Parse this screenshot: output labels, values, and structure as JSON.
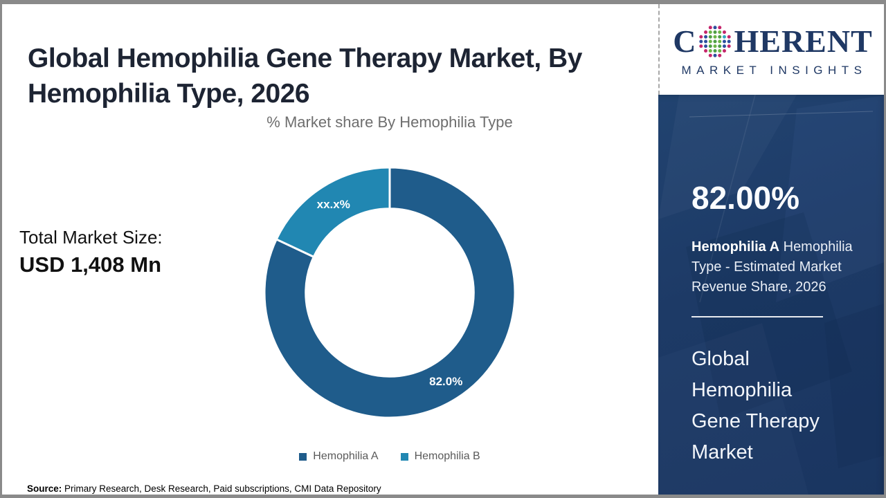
{
  "header": {
    "title": "Global Hemophilia Gene Therapy Market, By Hemophilia Type, 2026"
  },
  "left_panel": {
    "total_label": "Total Market Size:",
    "total_value": "USD 1,408 Mn"
  },
  "chart_data": {
    "type": "donut",
    "title": "% Market share By Hemophilia Type",
    "unit": "%",
    "start_angle_deg": 0,
    "inner_radius_ratio": 0.67,
    "legend_position": "bottom",
    "series": [
      {
        "label": "Hemophilia A",
        "value": 82.0,
        "data_label": "82.0%",
        "color": "#1F5C8B"
      },
      {
        "label": "Hemophilia B",
        "value": 18.0,
        "data_label": "xx.x%",
        "color": "#2187B2"
      }
    ]
  },
  "sidebar": {
    "stat_value": "82.00%",
    "stat_desc_bold": "Hemophilia A",
    "stat_desc_rest": " Hemophilia Type - Estimated Market Revenue Share, 2026",
    "headline": "Global Hemophilia Gene Therapy Market",
    "background_color": "#1D3A66"
  },
  "logo": {
    "word_start": "C",
    "word_end": "HERENT",
    "subtitle": "MARKET INSIGHTS",
    "brand_color": "#1F3864",
    "globe_dot_palette": [
      "#4E9E45",
      "#6CB546",
      "#2E4E9E",
      "#C5256B",
      "#35A8C0"
    ]
  },
  "source": {
    "label": "Source:",
    "text": " Primary Research, Desk Research, Paid subscriptions, CMI Data Repository"
  }
}
